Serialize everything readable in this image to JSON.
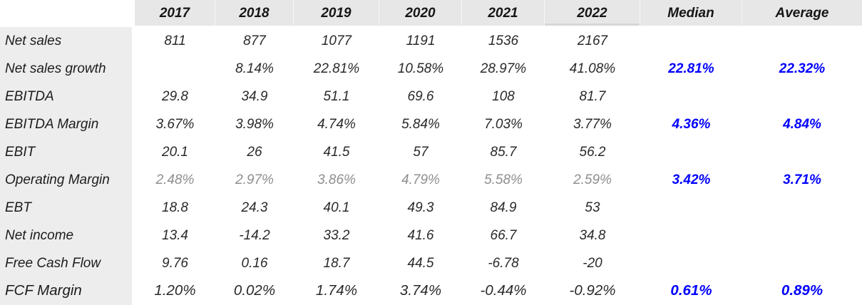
{
  "table": {
    "column_headers": [
      "2017",
      "2018",
      "2019",
      "2020",
      "2021",
      "2022",
      "Median",
      "Average"
    ],
    "rows": [
      {
        "label": "Net sales",
        "values": [
          "811",
          "877",
          "1077",
          "1191",
          "1536",
          "2167"
        ],
        "median": "",
        "average": "",
        "style": "normal"
      },
      {
        "label": "Net sales growth",
        "values": [
          "",
          "8.14%",
          "22.81%",
          "10.58%",
          "28.97%",
          "41.08%"
        ],
        "median": "22.81%",
        "average": "22.32%",
        "style": "normal"
      },
      {
        "label": "EBITDA",
        "values": [
          "29.8",
          "34.9",
          "51.1",
          "69.6",
          "108",
          "81.7"
        ],
        "median": "",
        "average": "",
        "style": "normal"
      },
      {
        "label": "EBITDA Margin",
        "values": [
          "3.67%",
          "3.98%",
          "4.74%",
          "5.84%",
          "7.03%",
          "3.77%"
        ],
        "median": "4.36%",
        "average": "4.84%",
        "style": "normal"
      },
      {
        "label": "EBIT",
        "values": [
          "20.1",
          "26",
          "41.5",
          "57",
          "85.7",
          "56.2"
        ],
        "median": "",
        "average": "",
        "style": "normal"
      },
      {
        "label": "Operating Margin",
        "values": [
          "2.48%",
          "2.97%",
          "3.86%",
          "4.79%",
          "5.58%",
          "2.59%"
        ],
        "median": "3.42%",
        "average": "3.71%",
        "style": "muted"
      },
      {
        "label": "EBT",
        "values": [
          "18.8",
          "24.3",
          "40.1",
          "49.3",
          "84.9",
          "53"
        ],
        "median": "",
        "average": "",
        "style": "normal"
      },
      {
        "label": "Net income",
        "values": [
          "13.4",
          "-14.2",
          "33.2",
          "41.6",
          "66.7",
          "34.8"
        ],
        "median": "",
        "average": "",
        "style": "normal"
      },
      {
        "label": "Free Cash Flow",
        "values": [
          "9.76",
          "0.16",
          "18.7",
          "44.5",
          "-6.78",
          "-20"
        ],
        "median": "",
        "average": "",
        "style": "normal"
      },
      {
        "label": "FCF Margin",
        "values": [
          "1.20%",
          "0.02%",
          "1.74%",
          "3.74%",
          "-0.44%",
          "-0.92%"
        ],
        "median": "0.61%",
        "average": "0.89%",
        "style": "large"
      }
    ],
    "colors": {
      "header_bg": "#e7e7e7",
      "label_bg": "#ededed",
      "value_text": "#2a2a2a",
      "muted_text": "#8e8e8e",
      "accent_blue": "#0000ff"
    }
  }
}
